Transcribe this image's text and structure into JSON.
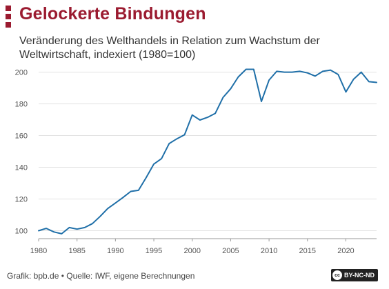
{
  "header": {
    "title": "Gelockerte Bindungen",
    "subtitle": "Veränderung des Welthandels in Relation zum Wachstum der Weltwirtschaft, indexiert (1980=100)"
  },
  "footer": {
    "source": "Grafik: bpb.de • Quelle: IWF, eigene Berechnungen",
    "license": "BY-NC-ND",
    "license_icon_text": "cc"
  },
  "colors": {
    "brand": "#9b1b30",
    "line": "#1f6fa8",
    "grid": "#e2e2e2",
    "tick_text": "#555555"
  },
  "chart_data": {
    "type": "line",
    "xlim": [
      1980,
      2024
    ],
    "ylim": [
      95,
      202
    ],
    "x_ticks": [
      1980,
      1985,
      1990,
      1995,
      2000,
      2005,
      2010,
      2015,
      2020
    ],
    "y_ticks": [
      100,
      120,
      140,
      160,
      180,
      200
    ],
    "grid": true,
    "legend": "none",
    "series": [
      {
        "x": [
          1980,
          1981,
          1982,
          1983,
          1984,
          1985,
          1986,
          1987,
          1988,
          1989,
          1990,
          1991,
          1992,
          1993,
          1994,
          1995,
          1996,
          1997,
          1998,
          1999,
          2000,
          2001,
          2002,
          2003,
          2004,
          2005,
          2006,
          2007,
          2008,
          2009,
          2010,
          2011,
          2012,
          2013,
          2014,
          2015,
          2016,
          2017,
          2018,
          2019,
          2020,
          2021,
          2022,
          2023,
          2024
        ],
        "values": [
          100,
          101.5,
          99.2,
          98.1,
          102,
          101,
          102,
          104.5,
          109,
          114,
          117.5,
          121,
          124.8,
          125.5,
          133.5,
          142,
          145.5,
          155,
          158,
          160.5,
          173,
          169.8,
          171.5,
          174,
          184,
          189.5,
          197,
          201.8,
          201.8,
          181.5,
          195,
          200.5,
          200,
          200,
          200.5,
          199.5,
          197.5,
          200.5,
          201.3,
          198.5,
          187.5,
          195.5,
          200,
          194,
          193.5
        ]
      }
    ]
  }
}
